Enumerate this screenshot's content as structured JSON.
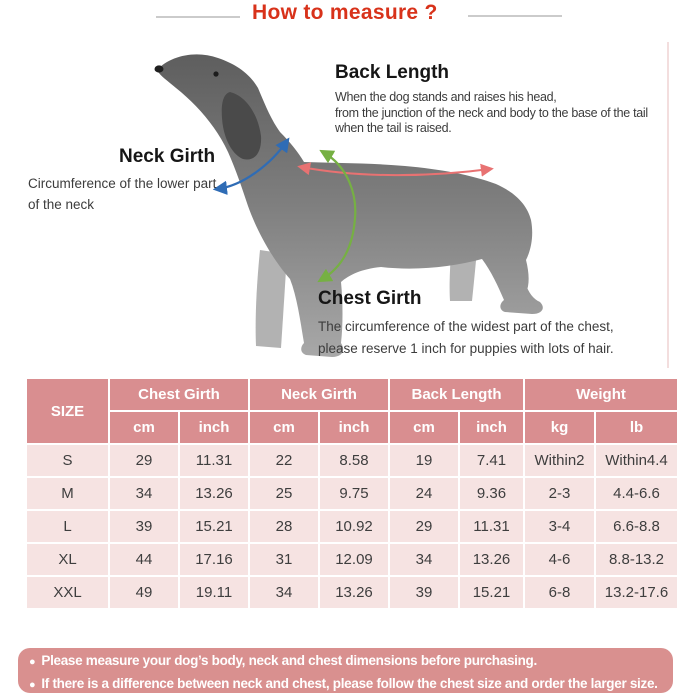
{
  "title": {
    "text": "How to measure ?"
  },
  "colors": {
    "title_red": "#d8321a",
    "table_header_pink": "#d98e90",
    "table_row_pink": "#f6e3e2",
    "notes_bar_pink": "#d9908f",
    "neck_arrow_blue": "#2f6cb5",
    "back_arrow_red": "#e87272",
    "chest_arrow_green": "#76b043"
  },
  "annotations": {
    "back_length": {
      "heading": "Back Length",
      "lines": [
        "When the dog stands and raises his head,",
        "from the junction of the neck and body to the base of the tail",
        "when the tail is raised."
      ]
    },
    "neck_girth": {
      "heading": "Neck Girth",
      "lines": [
        "Circumference of the lower part",
        "of the neck"
      ]
    },
    "chest_girth": {
      "heading": "Chest Girth",
      "lines": [
        "The circumference of the widest part of the chest,",
        "please reserve 1 inch for puppies with lots of hair."
      ]
    }
  },
  "size_table": {
    "corner_header": "SIZE",
    "groups": [
      {
        "label": "Chest Girth",
        "units": [
          "cm",
          "inch"
        ]
      },
      {
        "label": "Neck Girth",
        "units": [
          "cm",
          "inch"
        ]
      },
      {
        "label": "Back Length",
        "units": [
          "cm",
          "inch"
        ]
      },
      {
        "label": "Weight",
        "units": [
          "kg",
          "lb"
        ]
      }
    ],
    "rows": [
      {
        "size": "S",
        "values": [
          "29",
          "11.31",
          "22",
          "8.58",
          "19",
          "7.41",
          "Within2",
          "Within4.4"
        ]
      },
      {
        "size": "M",
        "values": [
          "34",
          "13.26",
          "25",
          "9.75",
          "24",
          "9.36",
          "2-3",
          "4.4-6.6"
        ]
      },
      {
        "size": "L",
        "values": [
          "39",
          "15.21",
          "28",
          "10.92",
          "29",
          "11.31",
          "3-4",
          "6.6-8.8"
        ]
      },
      {
        "size": "XL",
        "values": [
          "44",
          "17.16",
          "31",
          "12.09",
          "34",
          "13.26",
          "4-6",
          "8.8-13.2"
        ]
      },
      {
        "size": "XXL",
        "values": [
          "49",
          "19.11",
          "34",
          "13.26",
          "39",
          "15.21",
          "6-8",
          "13.2-17.6"
        ]
      }
    ]
  },
  "notes": {
    "bullet": "●",
    "items": [
      "Please measure your dog’s body, neck and chest dimensions before purchasing.",
      "If there is a difference between neck and chest, please follow the chest size and order the larger size."
    ]
  }
}
